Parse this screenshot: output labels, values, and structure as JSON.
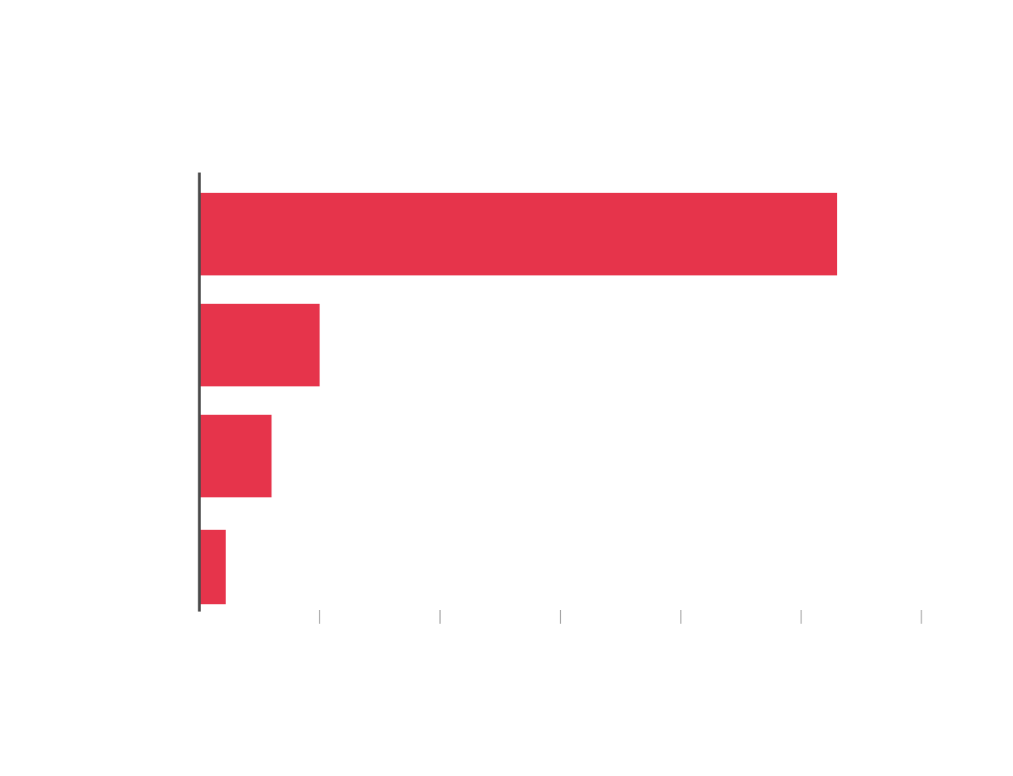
{
  "chart_data": {
    "type": "bar",
    "orientation": "horizontal",
    "categories": [
      "",
      "",
      "",
      ""
    ],
    "values": [
      5.3,
      1.0,
      0.6,
      0.22
    ],
    "xlim": [
      0,
      6
    ],
    "xticks": [
      1,
      2,
      3,
      4,
      5,
      6
    ],
    "title": "",
    "xlabel": "",
    "ylabel": "",
    "grid": false,
    "bar_color": "#e6344b",
    "axis_color": "#4a4a4a",
    "tick_color": "#9a9a9a"
  }
}
